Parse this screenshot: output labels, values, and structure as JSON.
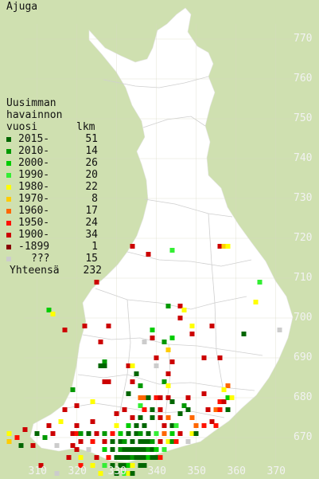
{
  "title": "Ajuga",
  "legend": {
    "heading_lines": [
      "Uusimman",
      "havainnon"
    ],
    "subheading_left": "vuosi",
    "subheading_right": "lkm",
    "items": [
      {
        "label": "2015-",
        "count": "51",
        "color": "#006600"
      },
      {
        "label": "2010-",
        "count": "14",
        "color": "#009900"
      },
      {
        "label": "2000-",
        "count": "26",
        "color": "#00cc00"
      },
      {
        "label": "1990-",
        "count": "20",
        "color": "#33ee33"
      },
      {
        "label": "1980-",
        "count": "22",
        "color": "#ffff00"
      },
      {
        "label": "1970-",
        "count": "8",
        "color": "#ffcc00"
      },
      {
        "label": "1960-",
        "count": "17",
        "color": "#ff6600"
      },
      {
        "label": "1950-",
        "count": "24",
        "color": "#ff1100"
      },
      {
        "label": "1900-",
        "count": "34",
        "color": "#cc0000"
      },
      {
        "label": "-1899",
        "count": "1",
        "color": "#880000"
      },
      {
        "label": "???",
        "count": "15",
        "color": "#cccccc"
      }
    ],
    "total_label": "Yhteensä",
    "total_count": "232"
  },
  "axes": {
    "y_ticks": [
      "770",
      "760",
      "750",
      "740",
      "730",
      "720",
      "710",
      "700",
      "690",
      "680",
      "670"
    ],
    "x_ticks": [
      "310",
      "320",
      "330",
      "340",
      "350",
      "360",
      "370"
    ]
  },
  "chart_data": {
    "type": "grid-distribution-map",
    "grid_system": "YKJ 10 km",
    "points": [
      {
        "x": 356,
        "y": 718,
        "c": 8
      },
      {
        "x": 357,
        "y": 718,
        "c": 5
      },
      {
        "x": 358,
        "y": 718,
        "c": 4
      },
      {
        "x": 334,
        "y": 718,
        "c": 8
      },
      {
        "x": 344,
        "y": 717,
        "c": 3
      },
      {
        "x": 338,
        "y": 716,
        "c": 8
      },
      {
        "x": 325,
        "y": 709,
        "c": 8
      },
      {
        "x": 366,
        "y": 709,
        "c": 3
      },
      {
        "x": 365,
        "y": 704,
        "c": 4
      },
      {
        "x": 343,
        "y": 703,
        "c": 1
      },
      {
        "x": 346,
        "y": 703,
        "c": 8
      },
      {
        "x": 313,
        "y": 702,
        "c": 2
      },
      {
        "x": 314,
        "y": 701,
        "c": 4
      },
      {
        "x": 347,
        "y": 702,
        "c": 4
      },
      {
        "x": 346,
        "y": 700,
        "c": 8
      },
      {
        "x": 322,
        "y": 698,
        "c": 8
      },
      {
        "x": 328,
        "y": 698,
        "c": 8
      },
      {
        "x": 317,
        "y": 697,
        "c": 8
      },
      {
        "x": 339,
        "y": 697,
        "c": 2
      },
      {
        "x": 349,
        "y": 698,
        "c": 4
      },
      {
        "x": 354,
        "y": 698,
        "c": 8
      },
      {
        "x": 339,
        "y": 695,
        "c": 8
      },
      {
        "x": 344,
        "y": 695,
        "c": 2
      },
      {
        "x": 349,
        "y": 696,
        "c": 8
      },
      {
        "x": 362,
        "y": 696,
        "c": 0
      },
      {
        "x": 371,
        "y": 697,
        "c": 10
      },
      {
        "x": 337,
        "y": 694,
        "c": 10
      },
      {
        "x": 342,
        "y": 694,
        "c": 1
      },
      {
        "x": 326,
        "y": 694,
        "c": 8
      },
      {
        "x": 343,
        "y": 692,
        "c": 5
      },
      {
        "x": 340,
        "y": 690,
        "c": 8
      },
      {
        "x": 352,
        "y": 690,
        "c": 8
      },
      {
        "x": 356,
        "y": 690,
        "c": 8
      },
      {
        "x": 344,
        "y": 689,
        "c": 8
      },
      {
        "x": 327,
        "y": 689,
        "c": 1
      },
      {
        "x": 326,
        "y": 688,
        "c": 0
      },
      {
        "x": 327,
        "y": 688,
        "c": 0
      },
      {
        "x": 333,
        "y": 688,
        "c": 8
      },
      {
        "x": 334,
        "y": 688,
        "c": 4
      },
      {
        "x": 340,
        "y": 688,
        "c": 10
      },
      {
        "x": 343,
        "y": 686,
        "c": 8
      },
      {
        "x": 335,
        "y": 686,
        "c": 0
      },
      {
        "x": 327,
        "y": 684,
        "c": 8
      },
      {
        "x": 328,
        "y": 684,
        "c": 8
      },
      {
        "x": 334,
        "y": 684,
        "c": 8
      },
      {
        "x": 342,
        "y": 684,
        "c": 1
      },
      {
        "x": 336,
        "y": 683,
        "c": 1
      },
      {
        "x": 343,
        "y": 683,
        "c": 4
      },
      {
        "x": 358,
        "y": 683,
        "c": 6
      },
      {
        "x": 357,
        "y": 682,
        "c": 4
      },
      {
        "x": 319,
        "y": 682,
        "c": 1
      },
      {
        "x": 352,
        "y": 681,
        "c": 8
      },
      {
        "x": 333,
        "y": 681,
        "c": 0
      },
      {
        "x": 336,
        "y": 680,
        "c": 6
      },
      {
        "x": 337,
        "y": 680,
        "c": 6
      },
      {
        "x": 338,
        "y": 680,
        "c": 0
      },
      {
        "x": 340,
        "y": 680,
        "c": 7
      },
      {
        "x": 341,
        "y": 680,
        "c": 8
      },
      {
        "x": 343,
        "y": 680,
        "c": 8
      },
      {
        "x": 344,
        "y": 679,
        "c": 0
      },
      {
        "x": 348,
        "y": 680,
        "c": 8
      },
      {
        "x": 356,
        "y": 679,
        "c": 7
      },
      {
        "x": 357,
        "y": 679,
        "c": 8
      },
      {
        "x": 358,
        "y": 680,
        "c": 2
      },
      {
        "x": 359,
        "y": 680,
        "c": 4
      },
      {
        "x": 324,
        "y": 679,
        "c": 4
      },
      {
        "x": 317,
        "y": 677,
        "c": 8
      },
      {
        "x": 320,
        "y": 678,
        "c": 8
      },
      {
        "x": 332,
        "y": 677,
        "c": 8
      },
      {
        "x": 336,
        "y": 678,
        "c": 3
      },
      {
        "x": 337,
        "y": 677,
        "c": 7
      },
      {
        "x": 339,
        "y": 677,
        "c": 0
      },
      {
        "x": 341,
        "y": 677,
        "c": 8
      },
      {
        "x": 347,
        "y": 678,
        "c": 1
      },
      {
        "x": 348,
        "y": 677,
        "c": 0
      },
      {
        "x": 353,
        "y": 677,
        "c": 8
      },
      {
        "x": 355,
        "y": 677,
        "c": 6
      },
      {
        "x": 356,
        "y": 677,
        "c": 7
      },
      {
        "x": 358,
        "y": 677,
        "c": 0
      },
      {
        "x": 330,
        "y": 676,
        "c": 8
      },
      {
        "x": 334,
        "y": 675,
        "c": 8
      },
      {
        "x": 336,
        "y": 675,
        "c": 0
      },
      {
        "x": 339,
        "y": 675,
        "c": 0
      },
      {
        "x": 341,
        "y": 675,
        "c": 8
      },
      {
        "x": 343,
        "y": 675,
        "c": 6
      },
      {
        "x": 346,
        "y": 676,
        "c": 0
      },
      {
        "x": 349,
        "y": 675,
        "c": 6
      },
      {
        "x": 354,
        "y": 674,
        "c": 8
      },
      {
        "x": 313,
        "y": 673,
        "c": 8
      },
      {
        "x": 316,
        "y": 674,
        "c": 4
      },
      {
        "x": 320,
        "y": 673,
        "c": 8
      },
      {
        "x": 324,
        "y": 674,
        "c": 8
      },
      {
        "x": 330,
        "y": 673,
        "c": 4
      },
      {
        "x": 333,
        "y": 673,
        "c": 2
      },
      {
        "x": 335,
        "y": 673,
        "c": 0
      },
      {
        "x": 337,
        "y": 673,
        "c": 0
      },
      {
        "x": 342,
        "y": 673,
        "c": 8
      },
      {
        "x": 344,
        "y": 673,
        "c": 0
      },
      {
        "x": 345,
        "y": 673,
        "c": 3
      },
      {
        "x": 350,
        "y": 673,
        "c": 6
      },
      {
        "x": 352,
        "y": 673,
        "c": 7
      },
      {
        "x": 355,
        "y": 673,
        "c": 7
      },
      {
        "x": 303,
        "y": 671,
        "c": 4
      },
      {
        "x": 305,
        "y": 670,
        "c": 7
      },
      {
        "x": 307,
        "y": 672,
        "c": 8
      },
      {
        "x": 310,
        "y": 671,
        "c": 0
      },
      {
        "x": 312,
        "y": 670,
        "c": 1
      },
      {
        "x": 314,
        "y": 671,
        "c": 8
      },
      {
        "x": 319,
        "y": 671,
        "c": 8
      },
      {
        "x": 320,
        "y": 671,
        "c": 7
      },
      {
        "x": 321,
        "y": 671,
        "c": 1
      },
      {
        "x": 323,
        "y": 671,
        "c": 0
      },
      {
        "x": 325,
        "y": 671,
        "c": 8
      },
      {
        "x": 327,
        "y": 671,
        "c": 1
      },
      {
        "x": 329,
        "y": 671,
        "c": 7
      },
      {
        "x": 331,
        "y": 671,
        "c": 2
      },
      {
        "x": 333,
        "y": 671,
        "c": 0
      },
      {
        "x": 335,
        "y": 671,
        "c": 0
      },
      {
        "x": 336,
        "y": 671,
        "c": 1
      },
      {
        "x": 338,
        "y": 671,
        "c": 0
      },
      {
        "x": 340,
        "y": 671,
        "c": 3
      },
      {
        "x": 342,
        "y": 671,
        "c": 6
      },
      {
        "x": 344,
        "y": 671,
        "c": 2
      },
      {
        "x": 346,
        "y": 671,
        "c": 8
      },
      {
        "x": 349,
        "y": 671,
        "c": 4
      },
      {
        "x": 350,
        "y": 671,
        "c": 0
      },
      {
        "x": 303,
        "y": 669,
        "c": 5
      },
      {
        "x": 306,
        "y": 668,
        "c": 0
      },
      {
        "x": 309,
        "y": 668,
        "c": 8
      },
      {
        "x": 315,
        "y": 668,
        "c": 10
      },
      {
        "x": 319,
        "y": 668,
        "c": 8
      },
      {
        "x": 321,
        "y": 669,
        "c": 8
      },
      {
        "x": 324,
        "y": 669,
        "c": 7
      },
      {
        "x": 327,
        "y": 669,
        "c": 8
      },
      {
        "x": 329,
        "y": 669,
        "c": 0
      },
      {
        "x": 331,
        "y": 669,
        "c": 0
      },
      {
        "x": 332,
        "y": 669,
        "c": 1
      },
      {
        "x": 334,
        "y": 669,
        "c": 0
      },
      {
        "x": 336,
        "y": 669,
        "c": 0
      },
      {
        "x": 337,
        "y": 669,
        "c": 0
      },
      {
        "x": 338,
        "y": 669,
        "c": 0
      },
      {
        "x": 339,
        "y": 669,
        "c": 1
      },
      {
        "x": 341,
        "y": 669,
        "c": 8
      },
      {
        "x": 343,
        "y": 669,
        "c": 4
      },
      {
        "x": 344,
        "y": 669,
        "c": 1
      },
      {
        "x": 345,
        "y": 669,
        "c": 7
      },
      {
        "x": 348,
        "y": 669,
        "c": 10
      },
      {
        "x": 320,
        "y": 667,
        "c": 8
      },
      {
        "x": 323,
        "y": 667,
        "c": 10
      },
      {
        "x": 327,
        "y": 667,
        "c": 2
      },
      {
        "x": 329,
        "y": 667,
        "c": 0
      },
      {
        "x": 331,
        "y": 667,
        "c": 1
      },
      {
        "x": 332,
        "y": 667,
        "c": 0
      },
      {
        "x": 333,
        "y": 667,
        "c": 0
      },
      {
        "x": 334,
        "y": 667,
        "c": 0
      },
      {
        "x": 335,
        "y": 667,
        "c": 0
      },
      {
        "x": 336,
        "y": 667,
        "c": 0
      },
      {
        "x": 337,
        "y": 667,
        "c": 0
      },
      {
        "x": 338,
        "y": 667,
        "c": 1
      },
      {
        "x": 339,
        "y": 667,
        "c": 0
      },
      {
        "x": 340,
        "y": 667,
        "c": 2
      },
      {
        "x": 342,
        "y": 667,
        "c": 3
      },
      {
        "x": 318,
        "y": 665,
        "c": 8
      },
      {
        "x": 321,
        "y": 665,
        "c": 4
      },
      {
        "x": 325,
        "y": 665,
        "c": 8
      },
      {
        "x": 328,
        "y": 665,
        "c": 7
      },
      {
        "x": 330,
        "y": 665,
        "c": 0
      },
      {
        "x": 331,
        "y": 665,
        "c": 0
      },
      {
        "x": 332,
        "y": 665,
        "c": 0
      },
      {
        "x": 333,
        "y": 665,
        "c": 0
      },
      {
        "x": 334,
        "y": 665,
        "c": 1
      },
      {
        "x": 335,
        "y": 665,
        "c": 0
      },
      {
        "x": 336,
        "y": 665,
        "c": 0
      },
      {
        "x": 337,
        "y": 665,
        "c": 0
      },
      {
        "x": 338,
        "y": 665,
        "c": 2
      },
      {
        "x": 339,
        "y": 665,
        "c": 0
      },
      {
        "x": 340,
        "y": 665,
        "c": 0
      },
      {
        "x": 341,
        "y": 665,
        "c": 7
      },
      {
        "x": 311,
        "y": 663,
        "c": 8
      },
      {
        "x": 321,
        "y": 663,
        "c": 7
      },
      {
        "x": 324,
        "y": 663,
        "c": 4
      },
      {
        "x": 327,
        "y": 663,
        "c": 3
      },
      {
        "x": 329,
        "y": 663,
        "c": 0
      },
      {
        "x": 331,
        "y": 663,
        "c": 0
      },
      {
        "x": 332,
        "y": 663,
        "c": 0
      },
      {
        "x": 333,
        "y": 663,
        "c": 2
      },
      {
        "x": 334,
        "y": 663,
        "c": 4
      },
      {
        "x": 336,
        "y": 663,
        "c": 0
      },
      {
        "x": 337,
        "y": 663,
        "c": 0
      },
      {
        "x": 315,
        "y": 661,
        "c": 10
      },
      {
        "x": 326,
        "y": 661,
        "c": 4
      },
      {
        "x": 330,
        "y": 661,
        "c": 0
      },
      {
        "x": 332,
        "y": 661,
        "c": 3
      },
      {
        "x": 333,
        "y": 661,
        "c": 4
      },
      {
        "x": 334,
        "y": 661,
        "c": 0
      }
    ]
  }
}
